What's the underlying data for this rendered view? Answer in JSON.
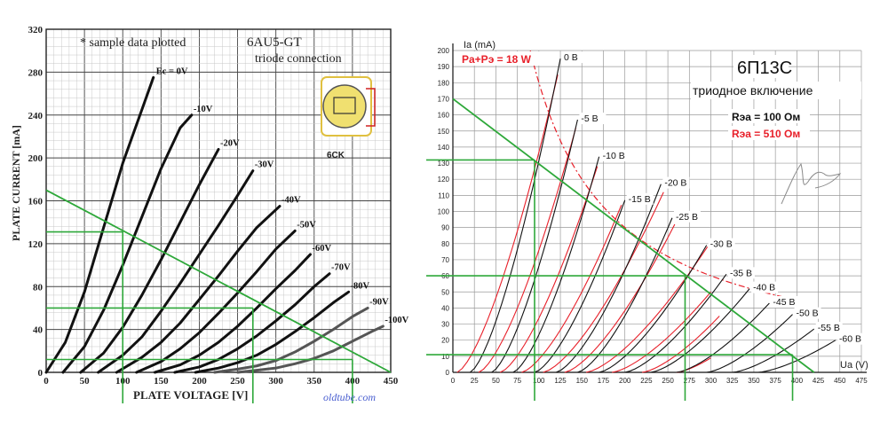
{
  "chart_data": [
    {
      "type": "line",
      "title": "6AU5-GT",
      "subtitle": "triode connection",
      "note": "* sample data plotted",
      "tube_label": "6CK",
      "watermark": "oldtube.com",
      "xlabel": "PLATE VOLTAGE [V]",
      "ylabel": "PLATE CURRENT [mA]",
      "xlim": [
        0,
        450
      ],
      "ylim": [
        0,
        320
      ],
      "x_ticks": [
        0,
        50,
        100,
        150,
        200,
        250,
        300,
        350,
        400,
        450
      ],
      "y_ticks": [
        0,
        40,
        80,
        120,
        160,
        200,
        240,
        280,
        320
      ],
      "curves": [
        {
          "name": "Ec = 0V",
          "points": [
            [
              0,
              0
            ],
            [
              25,
              28
            ],
            [
              50,
              75
            ],
            [
              75,
              135
            ],
            [
              100,
              195
            ],
            [
              125,
              245
            ],
            [
              140,
              275
            ]
          ]
        },
        {
          "name": "-10V",
          "points": [
            [
              22,
              0
            ],
            [
              50,
              24
            ],
            [
              75,
              58
            ],
            [
              100,
              100
            ],
            [
              125,
              145
            ],
            [
              150,
              190
            ],
            [
              175,
              228
            ],
            [
              190,
              240
            ]
          ]
        },
        {
          "name": "-20V",
          "points": [
            [
              45,
              0
            ],
            [
              75,
              18
            ],
            [
              100,
              42
            ],
            [
              125,
              72
            ],
            [
              150,
              105
            ],
            [
              175,
              140
            ],
            [
              200,
              175
            ],
            [
              225,
              208
            ]
          ]
        },
        {
          "name": "-30V",
          "points": [
            [
              68,
              0
            ],
            [
              100,
              16
            ],
            [
              125,
              33
            ],
            [
              150,
              57
            ],
            [
              175,
              83
            ],
            [
              200,
              110
            ],
            [
              225,
              137
            ],
            [
              250,
              165
            ],
            [
              270,
              188
            ]
          ]
        },
        {
          "name": "-40V",
          "points": [
            [
              92,
              0
            ],
            [
              125,
              14
            ],
            [
              150,
              28
            ],
            [
              175,
              46
            ],
            [
              200,
              68
            ],
            [
              225,
              90
            ],
            [
              250,
              113
            ],
            [
              275,
              135
            ],
            [
              305,
              155
            ]
          ]
        },
        {
          "name": "-50V",
          "points": [
            [
              118,
              0
            ],
            [
              150,
              10
            ],
            [
              175,
              22
            ],
            [
              200,
              37
            ],
            [
              225,
              55
            ],
            [
              250,
              74
            ],
            [
              275,
              94
            ],
            [
              300,
              115
            ],
            [
              325,
              132
            ]
          ]
        },
        {
          "name": "-60V",
          "points": [
            [
              142,
              0
            ],
            [
              175,
              7
            ],
            [
              200,
              16
            ],
            [
              225,
              28
            ],
            [
              250,
              43
            ],
            [
              275,
              60
            ],
            [
              300,
              78
            ],
            [
              325,
              95
            ],
            [
              345,
              110
            ]
          ]
        },
        {
          "name": "-70V",
          "points": [
            [
              168,
              0
            ],
            [
              200,
              5
            ],
            [
              225,
              12
            ],
            [
              250,
              22
            ],
            [
              275,
              34
            ],
            [
              300,
              48
            ],
            [
              325,
              63
            ],
            [
              350,
              80
            ],
            [
              370,
              92
            ]
          ]
        },
        {
          "name": "-80V",
          "points": [
            [
              195,
              0
            ],
            [
              225,
              4
            ],
            [
              250,
              9
            ],
            [
              275,
              16
            ],
            [
              300,
              26
            ],
            [
              325,
              38
            ],
            [
              350,
              51
            ],
            [
              375,
              65
            ],
            [
              395,
              75
            ]
          ]
        },
        {
          "name": "-90V",
          "points": [
            [
              220,
              0
            ],
            [
              250,
              3
            ],
            [
              275,
              6
            ],
            [
              300,
              11
            ],
            [
              325,
              19
            ],
            [
              350,
              29
            ],
            [
              375,
              40
            ],
            [
              400,
              52
            ],
            [
              420,
              60
            ]
          ]
        },
        {
          "name": "-100V",
          "points": [
            [
              250,
              0
            ],
            [
              275,
              2
            ],
            [
              300,
              4
            ],
            [
              325,
              8
            ],
            [
              350,
              13
            ],
            [
              375,
              20
            ],
            [
              400,
              29
            ],
            [
              425,
              38
            ],
            [
              440,
              43
            ]
          ]
        }
      ],
      "load_line": {
        "points": [
          [
            0,
            170
          ],
          [
            450,
            0
          ]
        ]
      },
      "operating_guides": [
        {
          "v": 100,
          "i": 131
        },
        {
          "v": 270,
          "i": 60
        },
        {
          "v": 400,
          "i": 12
        }
      ]
    },
    {
      "type": "line",
      "title": "6П13С",
      "subtitle": "триодное включение",
      "legend": [
        {
          "label": "Rэа = 100 Ом",
          "color": "#000000"
        },
        {
          "label": "Rэа = 510 Ом",
          "color": "#e8202a"
        }
      ],
      "power_label": "Pa+Pэ = 18 W",
      "xlabel": "Ua (V)",
      "ylabel": "Ia (mA)",
      "xlim": [
        0,
        475
      ],
      "ylim": [
        0,
        200
      ],
      "x_ticks": [
        0,
        25,
        50,
        75,
        100,
        125,
        150,
        175,
        200,
        225,
        250,
        275,
        300,
        325,
        350,
        375,
        400,
        425,
        450,
        475
      ],
      "y_ticks": [
        0,
        10,
        20,
        30,
        40,
        50,
        60,
        70,
        80,
        90,
        100,
        110,
        120,
        130,
        140,
        150,
        160,
        170,
        180,
        190,
        200
      ],
      "curve_labels": [
        "0 В",
        "-5 В",
        "-10 В",
        "-15 В",
        "-20 В",
        "-25 В",
        "-30 В",
        "-35 В",
        "-40 В",
        "-45 В",
        "-50 В",
        "-55 В",
        "-60 В"
      ],
      "black_curves": [
        {
          "name": "0 В",
          "v0": 20,
          "v1": 125,
          "i1": 195
        },
        {
          "name": "-5 В",
          "v0": 45,
          "v1": 145,
          "i1": 157
        },
        {
          "name": "-10 В",
          "v0": 70,
          "v1": 170,
          "i1": 134
        },
        {
          "name": "-15 В",
          "v0": 95,
          "v1": 200,
          "i1": 107
        },
        {
          "name": "-20 В",
          "v0": 120,
          "v1": 242,
          "i1": 117
        },
        {
          "name": "-25 В",
          "v0": 145,
          "v1": 255,
          "i1": 96
        },
        {
          "name": "-30 В",
          "v0": 170,
          "v1": 295,
          "i1": 79
        },
        {
          "name": "-35 В",
          "v0": 200,
          "v1": 318,
          "i1": 61
        },
        {
          "name": "-40 В",
          "v0": 230,
          "v1": 345,
          "i1": 52
        },
        {
          "name": "-45 В",
          "v0": 260,
          "v1": 368,
          "i1": 43
        },
        {
          "name": "-50 В",
          "v0": 295,
          "v1": 395,
          "i1": 36
        },
        {
          "name": "-55 В",
          "v0": 325,
          "v1": 420,
          "i1": 27
        },
        {
          "name": "-60 В",
          "v0": 355,
          "v1": 445,
          "i1": 20
        }
      ],
      "red_curves": [
        {
          "name": "0 В",
          "v0": 5,
          "v1": 122,
          "i1": 185
        },
        {
          "name": "-5 В",
          "v0": 30,
          "v1": 143,
          "i1": 152
        },
        {
          "name": "-10 В",
          "v0": 55,
          "v1": 168,
          "i1": 128
        },
        {
          "name": "-15 В",
          "v0": 80,
          "v1": 196,
          "i1": 104
        },
        {
          "name": "-20 В",
          "v0": 105,
          "v1": 245,
          "i1": 112
        },
        {
          "name": "-25 В",
          "v0": 130,
          "v1": 258,
          "i1": 92
        },
        {
          "name": "-30 В",
          "v0": 155,
          "v1": 296,
          "i1": 78
        },
        {
          "name": "-35 В",
          "v0": 185,
          "v1": 300,
          "i1": 50
        },
        {
          "name": "-40 В",
          "v0": 220,
          "v1": 310,
          "i1": 35
        },
        {
          "name": "-45 В",
          "v0": 260,
          "v1": 300,
          "i1": 9
        }
      ],
      "power_hyperbola": {
        "watts": 18,
        "v_from": 90,
        "v_to": 400
      },
      "load_line": {
        "points": [
          [
            0,
            170
          ],
          [
            420,
            0
          ]
        ]
      },
      "operating_guides": [
        {
          "v": 95,
          "i": 132
        },
        {
          "v": 270,
          "i": 60
        },
        {
          "v": 395,
          "i": 11
        }
      ]
    }
  ]
}
